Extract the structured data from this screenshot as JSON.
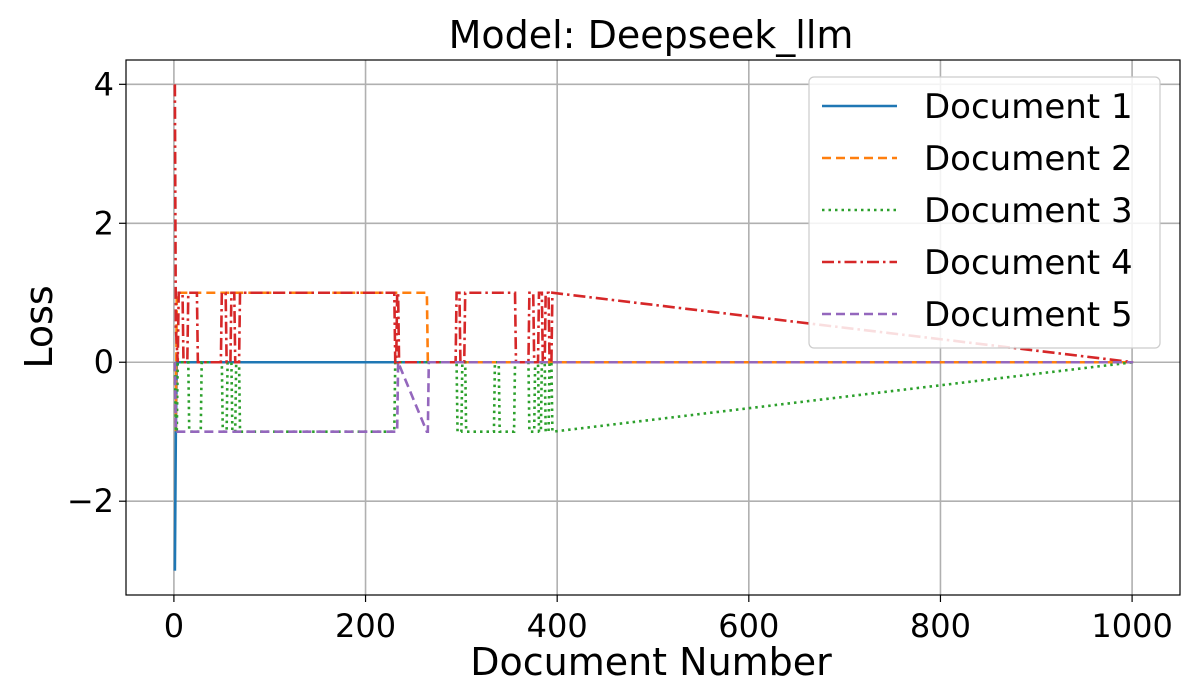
{
  "chart_data": {
    "type": "line",
    "title": "Model: Deepseek_llm",
    "xlabel": "Document Number",
    "ylabel": "Loss",
    "xlim": [
      -50,
      1050
    ],
    "ylim": [
      -3.35,
      4.35
    ],
    "xticks": [
      0,
      200,
      400,
      600,
      800,
      1000
    ],
    "xtick_labels": [
      "0",
      "200",
      "400",
      "600",
      "800",
      "1000"
    ],
    "yticks": [
      -2,
      0,
      2,
      4
    ],
    "ytick_labels": [
      "−2",
      "0",
      "2",
      "4"
    ],
    "grid": true,
    "legend_position": "top-right",
    "series": [
      {
        "name": "Document 1",
        "color": "#1f77b4",
        "dash": "solid",
        "x": [
          1,
          2,
          3,
          4,
          230,
          231,
          1001
        ],
        "y": [
          -3,
          -1,
          0,
          0,
          0,
          0,
          0
        ]
      },
      {
        "name": "Document 2",
        "color": "#ff7f0e",
        "dash": "dashed",
        "x": [
          1,
          2,
          3,
          4,
          5,
          264,
          265,
          266,
          1001
        ],
        "y": [
          0,
          -1,
          1,
          1,
          1,
          1,
          0,
          0,
          0
        ]
      },
      {
        "name": "Document 3",
        "color": "#2ca02c",
        "dash": "dotted",
        "x": [
          1,
          2,
          3,
          4,
          15,
          16,
          28,
          29,
          50,
          51,
          55,
          56,
          60,
          61,
          64,
          65,
          68,
          69,
          230,
          231,
          233,
          234,
          295,
          296,
          300,
          301,
          304,
          305,
          334,
          335,
          339,
          340,
          355,
          356,
          370,
          371,
          376,
          377,
          380,
          381,
          383,
          384,
          387,
          388,
          391,
          392,
          394,
          395,
          1001
        ],
        "y": [
          0,
          -1,
          -1,
          0,
          0,
          -1,
          -1,
          0,
          0,
          -1,
          -1,
          0,
          0,
          -1,
          -1,
          0,
          0,
          -1,
          -1,
          0,
          0,
          0,
          0,
          -1,
          -1,
          0,
          0,
          -1,
          -1,
          0,
          0,
          -1,
          -1,
          0,
          0,
          -1,
          -1,
          0,
          0,
          -1,
          -1,
          0,
          0,
          -1,
          -1,
          0,
          0,
          -1,
          0
        ]
      },
      {
        "name": "Document 4",
        "color": "#d62728",
        "dash": "dashdot",
        "x": [
          1,
          2,
          4,
          5,
          9,
          10,
          14,
          15,
          24,
          25,
          49,
          50,
          54,
          55,
          59,
          60,
          63,
          64,
          68,
          69,
          230,
          231,
          232,
          233,
          234,
          235,
          294,
          295,
          298,
          299,
          303,
          304,
          334,
          335,
          356,
          357,
          370,
          371,
          375,
          376,
          380,
          381,
          384,
          385,
          387,
          388,
          391,
          392,
          394,
          395,
          1001
        ],
        "y": [
          4,
          0.5,
          0,
          1,
          1,
          0,
          0,
          1,
          1,
          0,
          0,
          1,
          1,
          0,
          0,
          1,
          1,
          0,
          0,
          1,
          1,
          0,
          0,
          1,
          1,
          0,
          0,
          1,
          1,
          0,
          0,
          1,
          1,
          1,
          1,
          0,
          0,
          1,
          1,
          0,
          0,
          1,
          1,
          0,
          0,
          1,
          1,
          0,
          0,
          1,
          0
        ]
      },
      {
        "name": "Document 5",
        "color": "#9467bd",
        "dash": "dashed",
        "x": [
          1,
          2,
          3,
          4,
          233,
          234,
          264,
          265,
          266,
          1001
        ],
        "y": [
          0,
          -1,
          -1,
          -1,
          -1,
          0,
          -1,
          -1,
          0,
          0
        ]
      }
    ]
  }
}
